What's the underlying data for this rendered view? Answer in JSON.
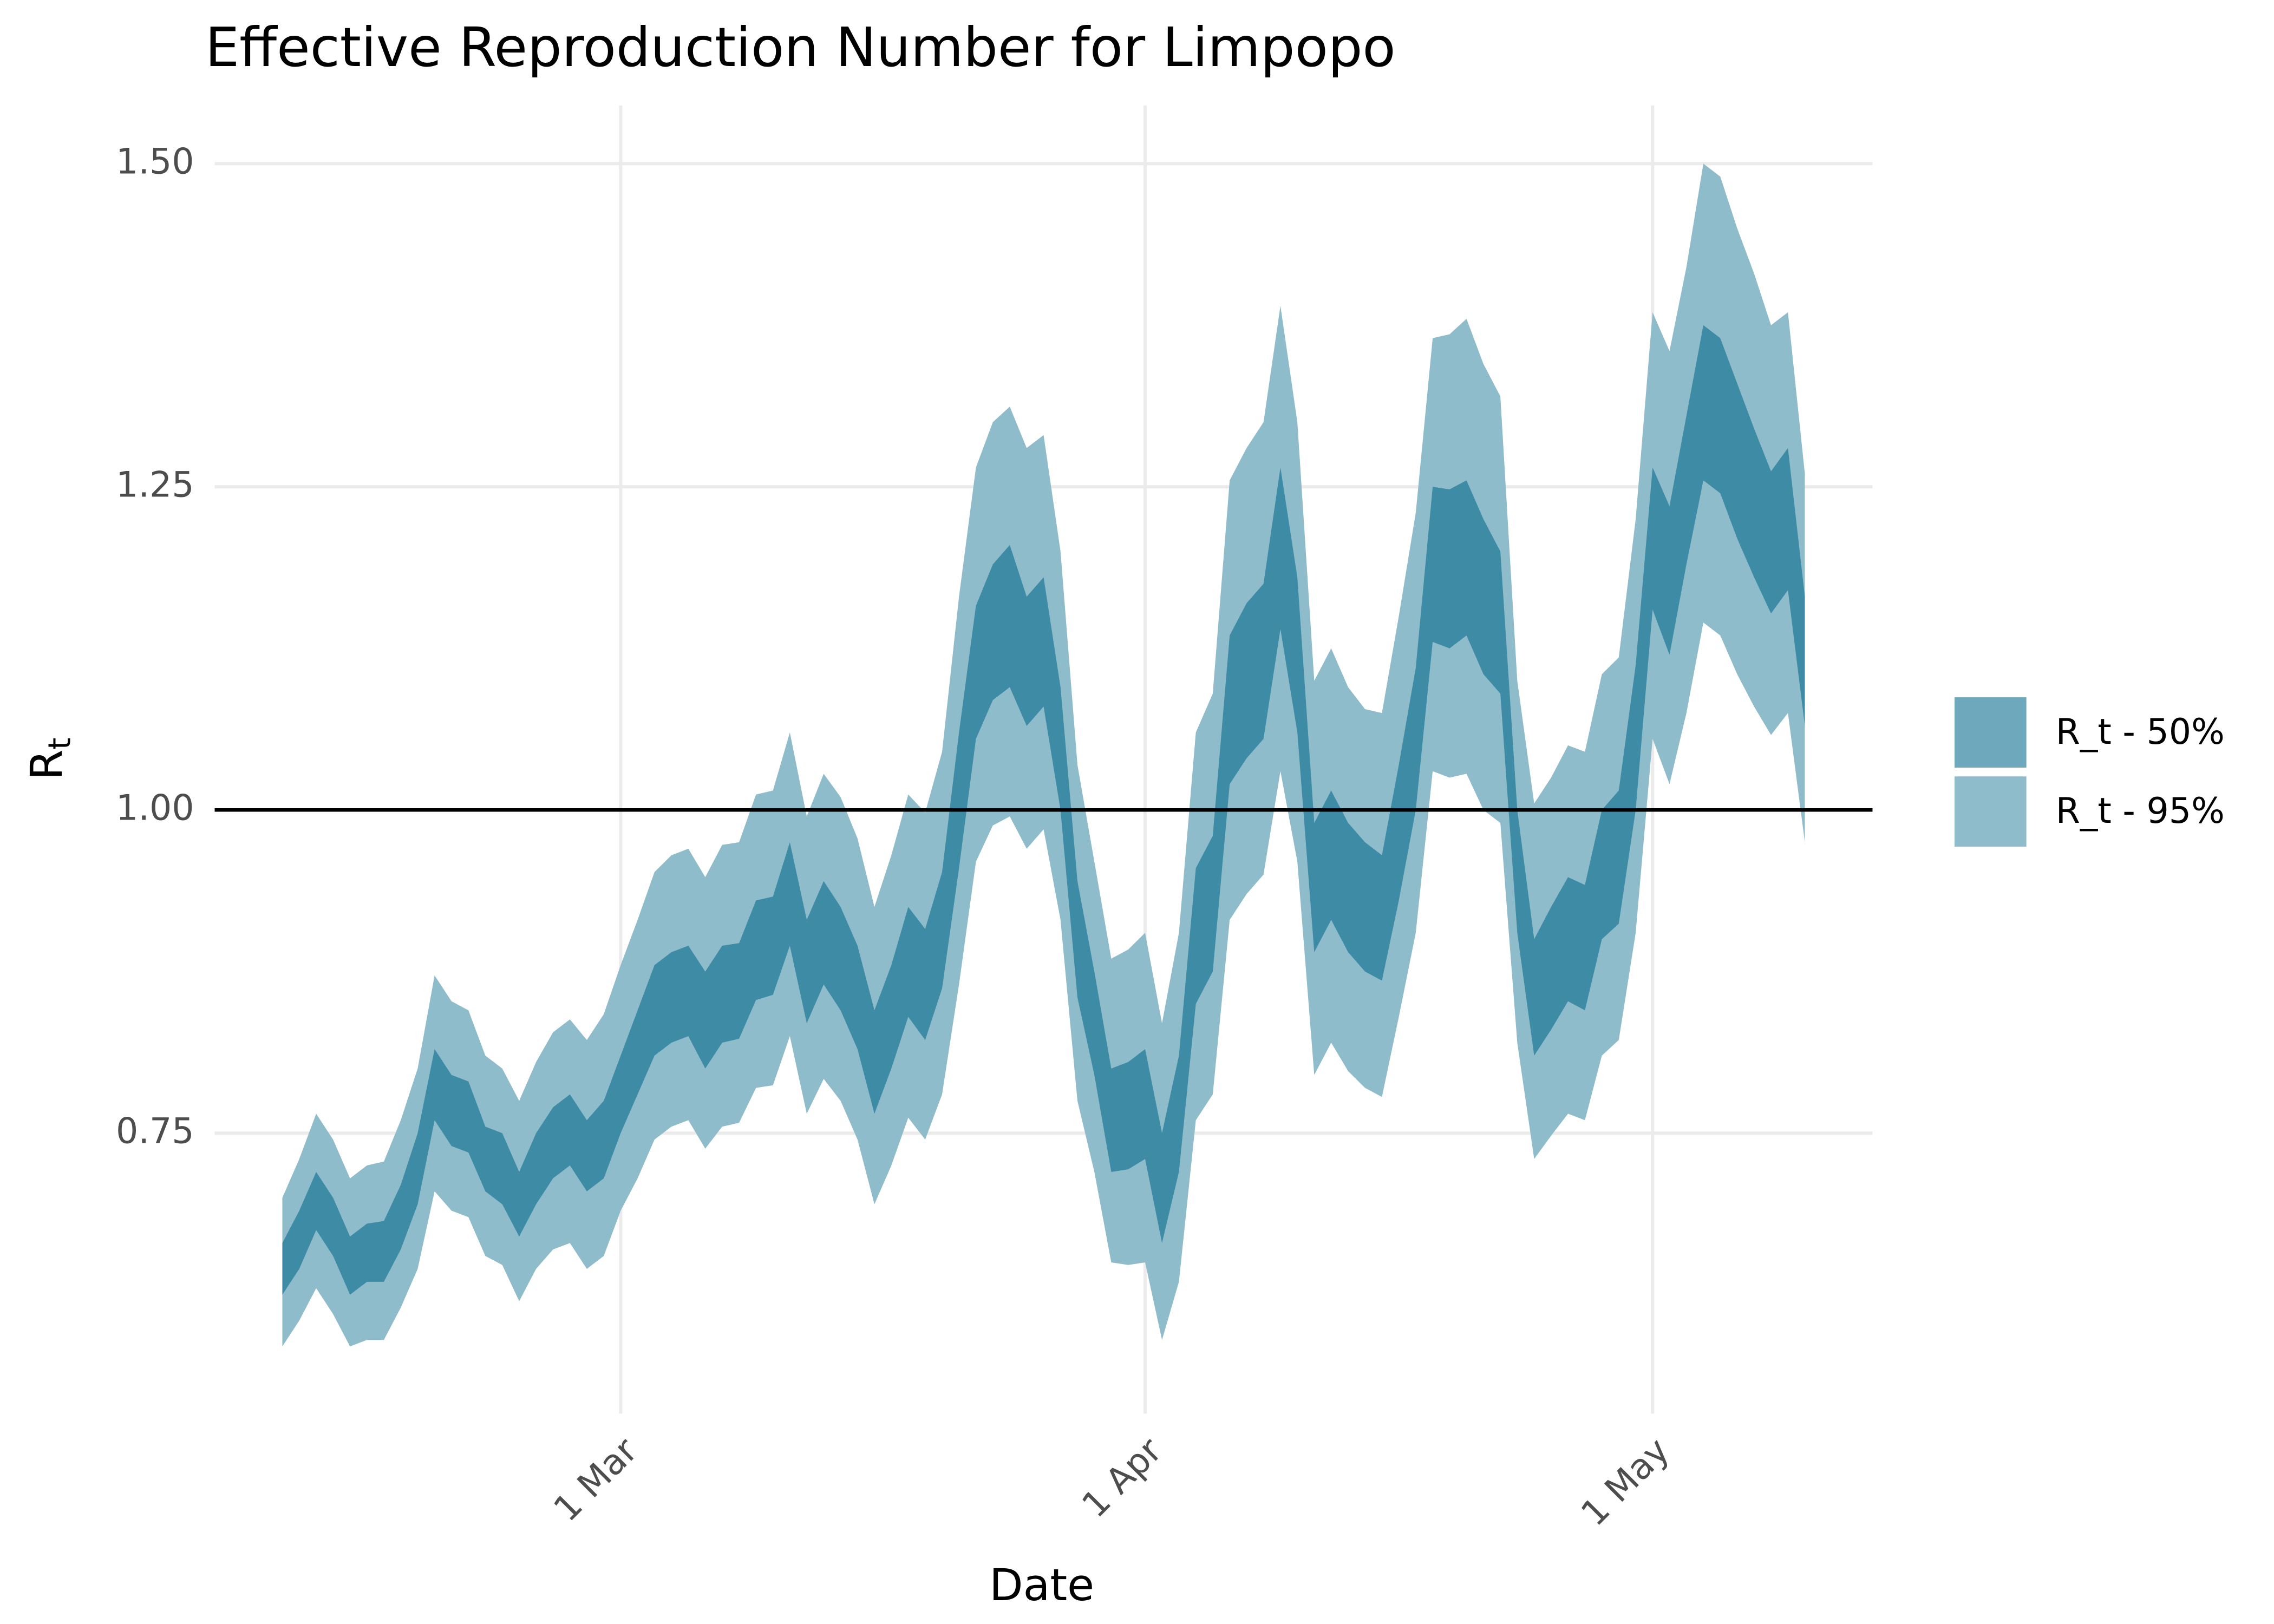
{
  "chart_data": {
    "type": "ribbon",
    "title": "Effective Reproduction Number for Limpopo",
    "xlabel": "Date",
    "ylabel": "R",
    "ylabel_subscript": "t",
    "x": [
      "10 Feb",
      "11 Feb",
      "12 Feb",
      "13 Feb",
      "14 Feb",
      "15 Feb",
      "16 Feb",
      "17 Feb",
      "18 Feb",
      "19 Feb",
      "20 Feb",
      "21 Feb",
      "22 Feb",
      "23 Feb",
      "24 Feb",
      "25 Feb",
      "26 Feb",
      "27 Feb",
      "28 Feb",
      "29 Feb",
      "1 Mar",
      "2 Mar",
      "3 Mar",
      "4 Mar",
      "5 Mar",
      "6 Mar",
      "7 Mar",
      "8 Mar",
      "9 Mar",
      "10 Mar",
      "11 Mar",
      "12 Mar",
      "13 Mar",
      "14 Mar",
      "15 Mar",
      "16 Mar",
      "17 Mar",
      "18 Mar",
      "19 Mar",
      "20 Mar",
      "21 Mar",
      "22 Mar",
      "23 Mar",
      "24 Mar",
      "25 Mar",
      "26 Mar",
      "27 Mar",
      "28 Mar",
      "29 Mar",
      "30 Mar",
      "31 Mar",
      "1 Apr",
      "2 Apr",
      "3 Apr",
      "4 Apr",
      "5 Apr",
      "6 Apr",
      "7 Apr",
      "8 Apr",
      "9 Apr",
      "10 Apr",
      "11 Apr",
      "12 Apr",
      "13 Apr",
      "14 Apr",
      "15 Apr",
      "16 Apr",
      "17 Apr",
      "18 Apr",
      "19 Apr",
      "20 Apr",
      "21 Apr",
      "22 Apr",
      "23 Apr",
      "24 Apr",
      "25 Apr",
      "26 Apr",
      "27 Apr",
      "28 Apr",
      "29 Apr",
      "30 Apr",
      "1 May",
      "2 May",
      "3 May",
      "4 May",
      "5 May",
      "6 May",
      "7 May",
      "8 May",
      "9 May",
      "10 May"
    ],
    "series": [
      {
        "name": "R_t - 95%",
        "color": "#8fbcca",
        "upper": [
          0.7,
          0.73,
          0.765,
          0.745,
          0.715,
          0.725,
          0.728,
          0.76,
          0.8,
          0.872,
          0.852,
          0.845,
          0.81,
          0.8,
          0.775,
          0.805,
          0.828,
          0.838,
          0.822,
          0.842,
          0.88,
          0.915,
          0.952,
          0.965,
          0.97,
          0.948,
          0.973,
          0.975,
          1.012,
          1.015,
          1.06,
          0.995,
          1.028,
          1.01,
          0.978,
          0.925,
          0.965,
          1.012,
          0.998,
          1.045,
          1.165,
          1.265,
          1.3,
          1.312,
          1.28,
          1.29,
          1.2,
          1.035,
          0.96,
          0.885,
          0.892,
          0.905,
          0.835,
          0.905,
          1.06,
          1.09,
          1.255,
          1.28,
          1.3,
          1.39,
          1.3,
          1.1,
          1.125,
          1.095,
          1.078,
          1.075,
          1.15,
          1.23,
          1.365,
          1.368,
          1.38,
          1.345,
          1.32,
          1.1,
          1.005,
          1.025,
          1.05,
          1.045,
          1.105,
          1.118,
          1.225,
          1.385,
          1.355,
          1.42,
          1.5,
          1.49,
          1.45,
          1.415,
          1.375,
          1.385,
          1.26
        ],
        "lower": [
          0.585,
          0.605,
          0.63,
          0.61,
          0.585,
          0.59,
          0.59,
          0.615,
          0.645,
          0.705,
          0.69,
          0.685,
          0.655,
          0.648,
          0.62,
          0.645,
          0.66,
          0.665,
          0.645,
          0.655,
          0.69,
          0.715,
          0.745,
          0.755,
          0.76,
          0.738,
          0.755,
          0.758,
          0.785,
          0.787,
          0.825,
          0.765,
          0.792,
          0.775,
          0.745,
          0.695,
          0.725,
          0.762,
          0.745,
          0.78,
          0.865,
          0.96,
          0.988,
          0.995,
          0.97,
          0.985,
          0.915,
          0.775,
          0.72,
          0.65,
          0.648,
          0.65,
          0.59,
          0.635,
          0.76,
          0.78,
          0.915,
          0.935,
          0.95,
          1.03,
          0.96,
          0.795,
          0.82,
          0.798,
          0.785,
          0.778,
          0.84,
          0.905,
          1.03,
          1.025,
          1.028,
          1.0,
          0.99,
          0.82,
          0.73,
          0.748,
          0.765,
          0.76,
          0.81,
          0.822,
          0.905,
          1.055,
          1.02,
          1.075,
          1.145,
          1.135,
          1.105,
          1.08,
          1.058,
          1.075,
          0.975
        ]
      },
      {
        "name": "R_t - 50%",
        "color": "#3e8ba6",
        "upper": [
          0.665,
          0.69,
          0.72,
          0.7,
          0.67,
          0.68,
          0.682,
          0.71,
          0.75,
          0.815,
          0.795,
          0.79,
          0.755,
          0.75,
          0.72,
          0.75,
          0.77,
          0.78,
          0.76,
          0.775,
          0.81,
          0.845,
          0.88,
          0.89,
          0.895,
          0.875,
          0.895,
          0.897,
          0.93,
          0.933,
          0.975,
          0.915,
          0.945,
          0.925,
          0.895,
          0.845,
          0.88,
          0.925,
          0.908,
          0.952,
          1.06,
          1.158,
          1.19,
          1.205,
          1.165,
          1.18,
          1.095,
          0.945,
          0.875,
          0.8,
          0.805,
          0.815,
          0.75,
          0.81,
          0.955,
          0.98,
          1.135,
          1.16,
          1.175,
          1.265,
          1.18,
          0.99,
          1.015,
          0.99,
          0.975,
          0.965,
          1.035,
          1.11,
          1.25,
          1.248,
          1.255,
          1.225,
          1.2,
          1.0,
          0.9,
          0.925,
          0.948,
          0.942,
          1.0,
          1.015,
          1.112,
          1.265,
          1.235,
          1.305,
          1.375,
          1.365,
          1.33,
          1.295,
          1.262,
          1.28,
          1.165
        ],
        "lower": [
          0.625,
          0.645,
          0.675,
          0.655,
          0.625,
          0.635,
          0.635,
          0.66,
          0.695,
          0.76,
          0.74,
          0.735,
          0.705,
          0.695,
          0.67,
          0.695,
          0.715,
          0.725,
          0.705,
          0.715,
          0.75,
          0.78,
          0.81,
          0.82,
          0.825,
          0.8,
          0.82,
          0.823,
          0.853,
          0.857,
          0.895,
          0.835,
          0.865,
          0.845,
          0.815,
          0.765,
          0.8,
          0.84,
          0.822,
          0.862,
          0.955,
          1.055,
          1.085,
          1.095,
          1.065,
          1.08,
          1.0,
          0.855,
          0.795,
          0.72,
          0.722,
          0.73,
          0.665,
          0.72,
          0.85,
          0.875,
          1.02,
          1.04,
          1.055,
          1.14,
          1.06,
          0.89,
          0.915,
          0.89,
          0.875,
          0.868,
          0.93,
          1.0,
          1.13,
          1.125,
          1.135,
          1.105,
          1.09,
          0.905,
          0.81,
          0.83,
          0.852,
          0.845,
          0.9,
          0.912,
          1.0,
          1.155,
          1.12,
          1.19,
          1.255,
          1.245,
          1.21,
          1.18,
          1.152,
          1.17,
          1.065
        ]
      }
    ],
    "hline": 1,
    "xlim": [
      "6 Feb",
      "14 May"
    ],
    "xticks": [
      "1 Mar",
      "1 Apr",
      "1 May"
    ],
    "ylim": [
      0.533,
      1.545
    ],
    "yticks": [
      0.75,
      {
        "value": 1.0,
        "label": "1.00"
      },
      1.25,
      {
        "value": 1.5,
        "label": "1.50"
      }
    ],
    "grid": true,
    "legend": "right"
  }
}
